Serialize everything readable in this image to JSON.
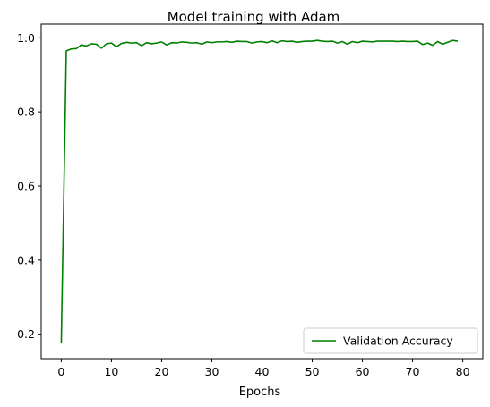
{
  "chart_data": {
    "type": "line",
    "title": "Model training with Adam",
    "xlabel": "Epochs",
    "ylabel": "",
    "xlim": [
      -4,
      84
    ],
    "ylim": [
      0.134,
      1.037
    ],
    "x_ticks": [
      0,
      10,
      20,
      30,
      40,
      50,
      60,
      70,
      80
    ],
    "y_ticks": [
      0.2,
      0.4,
      0.6,
      0.8,
      1.0
    ],
    "y_tick_labels": [
      "0.2",
      "0.4",
      "0.6",
      "0.8",
      "1.0"
    ],
    "grid": false,
    "legend": {
      "position": "lower-right"
    },
    "series": [
      {
        "name": "Validation Accuracy",
        "color": "#008000",
        "x": [
          0,
          1,
          2,
          3,
          4,
          5,
          6,
          7,
          8,
          9,
          10,
          11,
          12,
          13,
          14,
          15,
          16,
          17,
          18,
          19,
          20,
          21,
          22,
          23,
          24,
          25,
          26,
          27,
          28,
          29,
          30,
          31,
          32,
          33,
          34,
          35,
          36,
          37,
          38,
          39,
          40,
          41,
          42,
          43,
          44,
          45,
          46,
          47,
          48,
          49,
          50,
          51,
          52,
          53,
          54,
          55,
          56,
          57,
          58,
          59,
          60,
          61,
          62,
          63,
          64,
          65,
          66,
          67,
          68,
          69,
          70,
          71,
          72,
          73,
          74,
          75,
          76,
          77,
          78,
          79
        ],
        "values": [
          0.175,
          0.965,
          0.97,
          0.971,
          0.981,
          0.978,
          0.984,
          0.983,
          0.972,
          0.984,
          0.986,
          0.976,
          0.985,
          0.988,
          0.986,
          0.987,
          0.979,
          0.987,
          0.984,
          0.986,
          0.989,
          0.981,
          0.987,
          0.986,
          0.989,
          0.988,
          0.986,
          0.987,
          0.983,
          0.989,
          0.987,
          0.989,
          0.989,
          0.99,
          0.988,
          0.991,
          0.99,
          0.99,
          0.986,
          0.989,
          0.99,
          0.987,
          0.992,
          0.987,
          0.992,
          0.99,
          0.991,
          0.988,
          0.99,
          0.991,
          0.991,
          0.993,
          0.991,
          0.99,
          0.991,
          0.986,
          0.99,
          0.983,
          0.99,
          0.987,
          0.991,
          0.99,
          0.989,
          0.991,
          0.991,
          0.991,
          0.991,
          0.99,
          0.991,
          0.99,
          0.99,
          0.991,
          0.982,
          0.986,
          0.98,
          0.99,
          0.983,
          0.988,
          0.993,
          0.991
        ]
      }
    ]
  }
}
